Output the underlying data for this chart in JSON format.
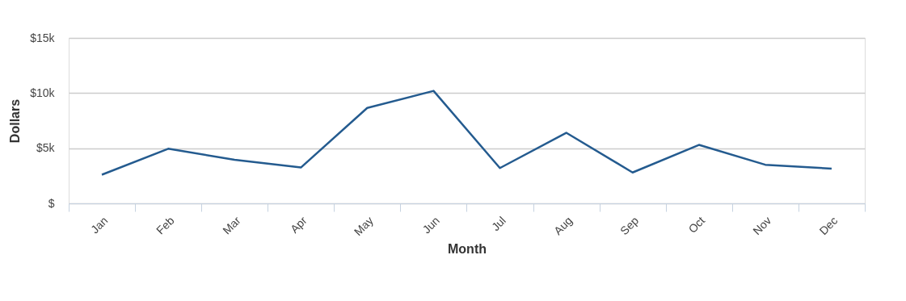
{
  "chart_data": {
    "type": "line",
    "xlabel": "Month",
    "ylabel": "Dollars",
    "categories": [
      "Jan",
      "Feb",
      "Mar",
      "Apr",
      "May",
      "Jun",
      "Jul",
      "Aug",
      "Sep",
      "Oct",
      "Nov",
      "Dec"
    ],
    "series": [
      {
        "color": "#245b8f",
        "values": [
          2600,
          4950,
          3950,
          3250,
          8650,
          10200,
          3200,
          6400,
          2800,
          5300,
          3500,
          3150
        ]
      }
    ],
    "ylim": [
      0,
      15000
    ],
    "yticks": [
      {
        "value": 0,
        "label": "$"
      },
      {
        "value": 5000,
        "label": "$5k"
      },
      {
        "value": 10000,
        "label": "$10k"
      },
      {
        "value": 15000,
        "label": "$15k"
      }
    ],
    "grid": "y",
    "marker": "none",
    "line_style": "solid"
  }
}
